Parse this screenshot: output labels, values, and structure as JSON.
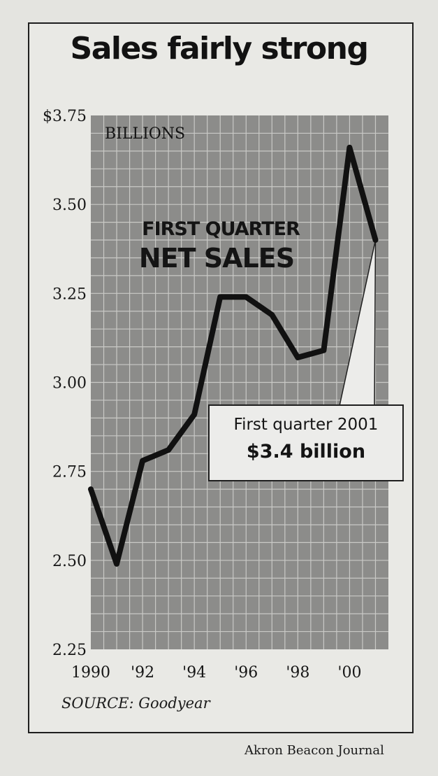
{
  "chart_data": {
    "type": "line",
    "title": "Sales fairly strong",
    "units_label": "BILLIONS",
    "inner_title": [
      "FIRST QUARTER",
      "NET SALES"
    ],
    "x": [
      1990,
      1991,
      1992,
      1993,
      1994,
      1995,
      1996,
      1997,
      1998,
      1999,
      2000,
      2001
    ],
    "x_tick_values": [
      1990,
      1992,
      1994,
      1996,
      1998,
      2000
    ],
    "x_tick_labels": [
      "1990",
      "'92",
      "'94",
      "'96",
      "'98",
      "'00"
    ],
    "series": [
      {
        "values": [
          2.7,
          2.49,
          2.78,
          2.81,
          2.91,
          3.24,
          3.24,
          3.19,
          3.07,
          3.09,
          3.66,
          3.4
        ]
      }
    ],
    "y_tick_values": [
      2.25,
      2.5,
      2.75,
      3.0,
      3.25,
      3.5,
      3.75
    ],
    "y_tick_labels": [
      "2.25",
      "2.50",
      "2.75",
      "3.00",
      "3.25",
      "3.50",
      "$3.75"
    ],
    "ylim": [
      2.25,
      3.75
    ],
    "xlim": [
      1990,
      2001.5
    ],
    "grid": true,
    "annotation": {
      "line1": "First quarter 2001",
      "line2": "$3.4 billion",
      "x": 2001,
      "y": 3.4
    },
    "source": "SOURCE: Goodyear",
    "credit": "Akron Beacon Journal",
    "colors": {
      "plot_fill": "#8c8c8a",
      "grid": "#c9c9c6",
      "line": "#111111",
      "background": "#e9e9e5"
    }
  }
}
